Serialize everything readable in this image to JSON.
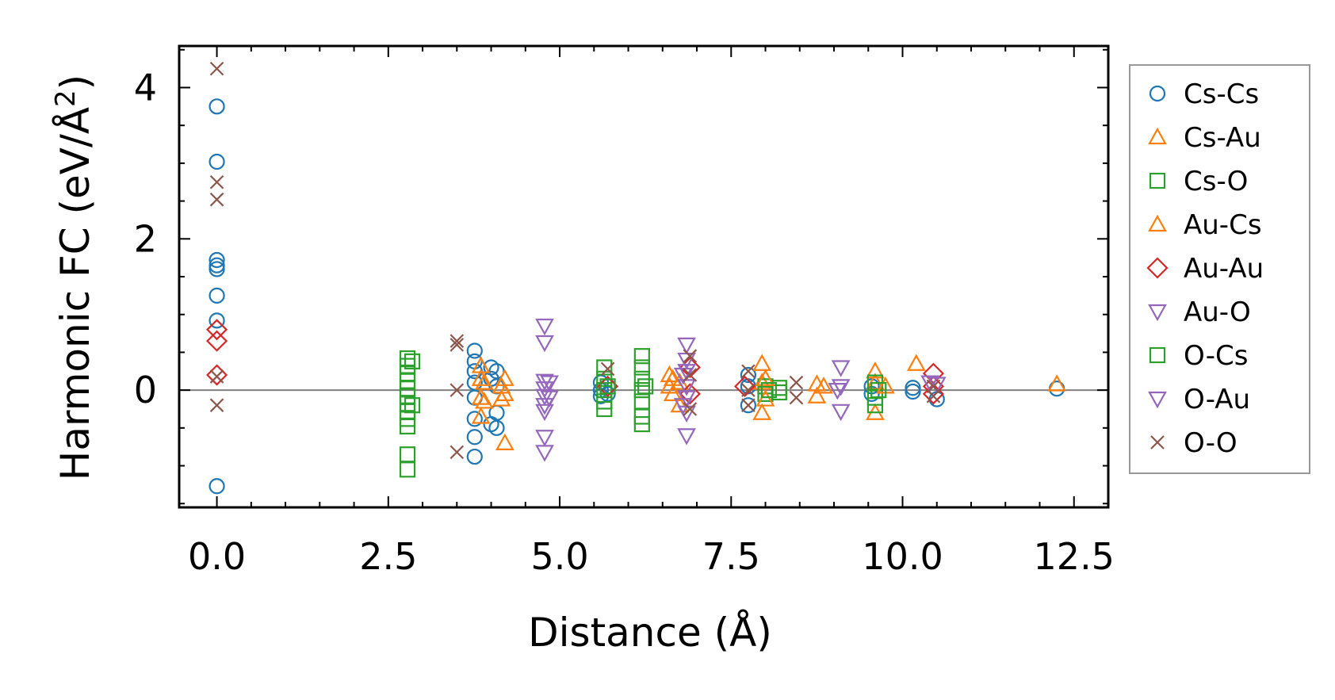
{
  "chart_data": {
    "type": "scatter",
    "xlabel": "Distance (Å)",
    "ylabel_main": "Harmonic FC (eV/Å",
    "ylabel_sup": "2",
    "ylabel_end": ")",
    "xlim": [
      -0.55,
      13.0
    ],
    "ylim": [
      -1.55,
      4.55
    ],
    "xticks": [
      0.0,
      2.5,
      5.0,
      7.5,
      10.0,
      12.5
    ],
    "xtick_labels": [
      "0.0",
      "2.5",
      "5.0",
      "7.5",
      "10.0",
      "12.5"
    ],
    "yticks": [
      0,
      2,
      4
    ],
    "ytick_labels": [
      "0",
      "2",
      "4"
    ],
    "zero_line": true,
    "legend_position": "right",
    "series": [
      {
        "name": "Cs-Cs",
        "marker": "circle",
        "color": "#1f77b4",
        "points": [
          [
            0,
            3.75
          ],
          [
            0,
            3.02
          ],
          [
            0,
            1.72
          ],
          [
            0,
            1.65
          ],
          [
            0,
            1.6
          ],
          [
            0,
            1.25
          ],
          [
            0,
            0.92
          ],
          [
            0,
            -1.27
          ],
          [
            3.76,
            0.52
          ],
          [
            3.76,
            0.38
          ],
          [
            3.76,
            0.25
          ],
          [
            3.76,
            0.1
          ],
          [
            3.76,
            -0.1
          ],
          [
            3.76,
            -0.38
          ],
          [
            3.76,
            -0.62
          ],
          [
            3.76,
            -0.88
          ],
          [
            4.0,
            0.3
          ],
          [
            4.0,
            0.15
          ],
          [
            4.0,
            -0.45
          ],
          [
            4.08,
            0.25
          ],
          [
            4.08,
            0.05
          ],
          [
            4.08,
            -0.3
          ],
          [
            4.08,
            -0.5
          ],
          [
            5.6,
            0.1
          ],
          [
            5.6,
            0.0
          ],
          [
            5.6,
            -0.08
          ],
          [
            5.7,
            0.05
          ],
          [
            5.7,
            -0.05
          ],
          [
            7.75,
            0.2
          ],
          [
            7.75,
            0.05
          ],
          [
            7.75,
            -0.2
          ],
          [
            9.55,
            0.05
          ],
          [
            9.55,
            -0.05
          ],
          [
            10.15,
            0.03
          ],
          [
            10.15,
            -0.02
          ],
          [
            10.5,
            -0.12
          ],
          [
            12.25,
            0.02
          ]
        ]
      },
      {
        "name": "Cs-Au",
        "marker": "triangle-up",
        "color": "#ff7f0e",
        "points": [
          [
            3.85,
            0.32
          ],
          [
            3.85,
            0.15
          ],
          [
            3.85,
            -0.1
          ],
          [
            3.85,
            -0.35
          ],
          [
            4.2,
            0.15
          ],
          [
            4.2,
            -0.05
          ],
          [
            4.2,
            -0.7
          ],
          [
            6.6,
            0.2
          ],
          [
            6.6,
            0.05
          ],
          [
            6.75,
            0.1
          ],
          [
            6.75,
            -0.2
          ],
          [
            7.95,
            0.35
          ],
          [
            7.95,
            0.1
          ],
          [
            7.95,
            -0.3
          ],
          [
            8.75,
            0.08
          ],
          [
            8.75,
            -0.08
          ],
          [
            9.6,
            0.25
          ],
          [
            9.6,
            0.1
          ],
          [
            9.6,
            -0.3
          ],
          [
            10.2,
            0.35
          ],
          [
            12.25,
            0.08
          ]
        ]
      },
      {
        "name": "Cs-O",
        "marker": "square",
        "color": "#2ca02c",
        "points": [
          [
            2.78,
            0.42
          ],
          [
            2.78,
            0.32
          ],
          [
            2.78,
            0.22
          ],
          [
            2.78,
            0.12
          ],
          [
            2.78,
            0.02
          ],
          [
            2.78,
            -0.08
          ],
          [
            2.78,
            -0.18
          ],
          [
            2.78,
            -0.28
          ],
          [
            2.78,
            -0.38
          ],
          [
            2.78,
            -0.48
          ],
          [
            2.78,
            -0.85
          ],
          [
            2.78,
            -1.05
          ],
          [
            5.65,
            0.3
          ],
          [
            5.65,
            0.15
          ],
          [
            5.65,
            0.0
          ],
          [
            5.65,
            -0.15
          ],
          [
            5.65,
            -0.25
          ],
          [
            6.2,
            0.45
          ],
          [
            6.2,
            0.3
          ],
          [
            6.2,
            0.15
          ],
          [
            6.2,
            0.0
          ],
          [
            6.2,
            -0.15
          ],
          [
            6.2,
            -0.35
          ],
          [
            6.2,
            -0.45
          ],
          [
            8.0,
            0.05
          ],
          [
            8.0,
            -0.05
          ],
          [
            8.2,
            0.03
          ],
          [
            8.2,
            -0.03
          ],
          [
            9.6,
            0.1
          ],
          [
            9.6,
            -0.1
          ],
          [
            9.6,
            -0.2
          ]
        ]
      },
      {
        "name": "Au-Cs",
        "marker": "triangle-up",
        "color": "#ff7f0e",
        "points": [
          [
            3.9,
            0.1
          ],
          [
            3.9,
            -0.15
          ],
          [
            4.15,
            0.05
          ],
          [
            4.15,
            -0.12
          ],
          [
            6.65,
            0.15
          ],
          [
            6.65,
            -0.05
          ],
          [
            8.0,
            0.15
          ],
          [
            8.0,
            -0.12
          ],
          [
            8.85,
            0.05
          ],
          [
            9.75,
            0.05
          ]
        ]
      },
      {
        "name": "Au-Au",
        "marker": "diamond",
        "color": "#d62728",
        "points": [
          [
            0,
            0.8
          ],
          [
            0,
            0.65
          ],
          [
            0,
            0.2
          ],
          [
            5.7,
            0.05
          ],
          [
            6.9,
            0.3
          ],
          [
            6.9,
            -0.05
          ],
          [
            7.7,
            0.05
          ],
          [
            10.45,
            0.22
          ],
          [
            10.45,
            0.05
          ],
          [
            10.45,
            -0.05
          ]
        ]
      },
      {
        "name": "Au-O",
        "marker": "triangle-down",
        "color": "#9467bd",
        "points": [
          [
            4.78,
            0.85
          ],
          [
            4.78,
            0.63
          ],
          [
            4.78,
            0.12
          ],
          [
            4.78,
            0.02
          ],
          [
            4.78,
            -0.08
          ],
          [
            4.78,
            -0.2
          ],
          [
            4.78,
            -0.28
          ],
          [
            4.78,
            -0.62
          ],
          [
            4.78,
            -0.82
          ],
          [
            6.85,
            0.6
          ],
          [
            6.85,
            0.4
          ],
          [
            6.85,
            0.25
          ],
          [
            6.85,
            0.05
          ],
          [
            6.85,
            -0.1
          ],
          [
            6.85,
            -0.3
          ],
          [
            6.85,
            -0.6
          ],
          [
            9.1,
            0.3
          ],
          [
            9.1,
            0.05
          ],
          [
            9.1,
            -0.28
          ],
          [
            10.4,
            0.1
          ]
        ]
      },
      {
        "name": "O-Cs",
        "marker": "square",
        "color": "#2ca02c",
        "points": [
          [
            2.85,
            0.38
          ],
          [
            2.85,
            -0.2
          ],
          [
            5.7,
            0.05
          ],
          [
            6.25,
            0.05
          ],
          [
            8.05,
            0.0
          ],
          [
            9.65,
            0.0
          ]
        ]
      },
      {
        "name": "O-Au",
        "marker": "triangle-down",
        "color": "#9467bd",
        "points": [
          [
            4.85,
            0.1
          ],
          [
            4.85,
            -0.1
          ],
          [
            6.8,
            0.2
          ],
          [
            6.8,
            -0.2
          ],
          [
            9.05,
            0.0
          ],
          [
            10.5,
            0.08
          ]
        ]
      },
      {
        "name": "O-O",
        "marker": "x",
        "color": "#8c564b",
        "points": [
          [
            0,
            4.25
          ],
          [
            0,
            2.75
          ],
          [
            0,
            2.52
          ],
          [
            0,
            0.18
          ],
          [
            0,
            -0.2
          ],
          [
            3.5,
            0.65
          ],
          [
            3.5,
            0.6
          ],
          [
            3.5,
            0.0
          ],
          [
            3.5,
            -0.82
          ],
          [
            5.7,
            0.28
          ],
          [
            6.9,
            0.45
          ],
          [
            6.9,
            0.2
          ],
          [
            6.9,
            -0.25
          ],
          [
            7.75,
            0.25
          ],
          [
            7.75,
            0.0
          ],
          [
            7.75,
            -0.2
          ],
          [
            8.45,
            0.1
          ],
          [
            8.45,
            -0.1
          ],
          [
            10.45,
            0.05
          ],
          [
            10.45,
            -0.08
          ]
        ]
      }
    ]
  }
}
